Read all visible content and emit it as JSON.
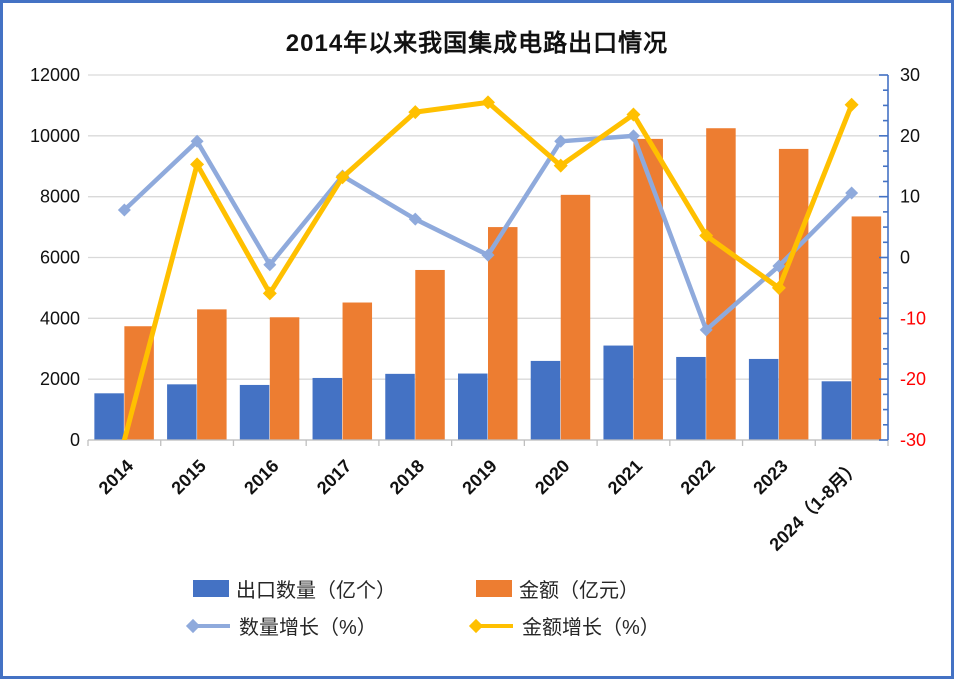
{
  "frame": {
    "border_color": "#4472C4",
    "background": "#FFFFFF"
  },
  "chart_data": {
    "type": "bar",
    "subtype": "combo-bar-line-dual-axis",
    "title": "2014年以来我国集成电路出口情况",
    "categories": [
      "2014",
      "2015",
      "2016",
      "2017",
      "2018",
      "2019",
      "2020",
      "2021",
      "2022",
      "2023",
      "2024（1-8月）"
    ],
    "series": [
      {
        "name": "出口数量（亿个）",
        "type": "bar",
        "axis": "left",
        "color": "#4472C4",
        "values": [
          1535,
          1830,
          1810,
          2040,
          2175,
          2185,
          2600,
          3105,
          2730,
          2665,
          1930
        ]
      },
      {
        "name": "金额（亿元）",
        "type": "bar",
        "axis": "left",
        "color": "#ED7D31",
        "values": [
          3740,
          4295,
          4035,
          4520,
          5590,
          7000,
          8060,
          9900,
          10250,
          9570,
          7350
        ]
      },
      {
        "name": "数量增长（%）",
        "type": "line",
        "axis": "right",
        "color": "#8FAADC",
        "values": [
          7.8,
          19.1,
          -1.2,
          13.4,
          6.3,
          0.4,
          19.1,
          20.0,
          -11.9,
          -1.4,
          10.6
        ]
      },
      {
        "name": "金额增长（%）",
        "type": "line",
        "axis": "right",
        "color": "#FFC000",
        "values": [
          -30,
          15.3,
          -5.9,
          13.2,
          23.9,
          25.5,
          15.1,
          23.5,
          3.6,
          -5.0,
          25.1
        ]
      }
    ],
    "left_axis": {
      "min": 0,
      "max": 12000,
      "step": 2000,
      "tick_labels": [
        "0",
        "2000",
        "4000",
        "6000",
        "8000",
        "10000",
        "12000"
      ]
    },
    "right_axis": {
      "min": -30,
      "max": 30,
      "step": 10,
      "minor_step": 2.5,
      "tick_labels": [
        "-30",
        "-20",
        "-10",
        "0",
        "10",
        "20",
        "30"
      ],
      "negative_color": "#FF0000",
      "axis_color": "#4472C4"
    },
    "grid": true,
    "gridline_color": "#D9D9D9",
    "x_axis_color": "#BFBFBF",
    "legend_position": "bottom",
    "x_label_rotation_deg": -45
  }
}
